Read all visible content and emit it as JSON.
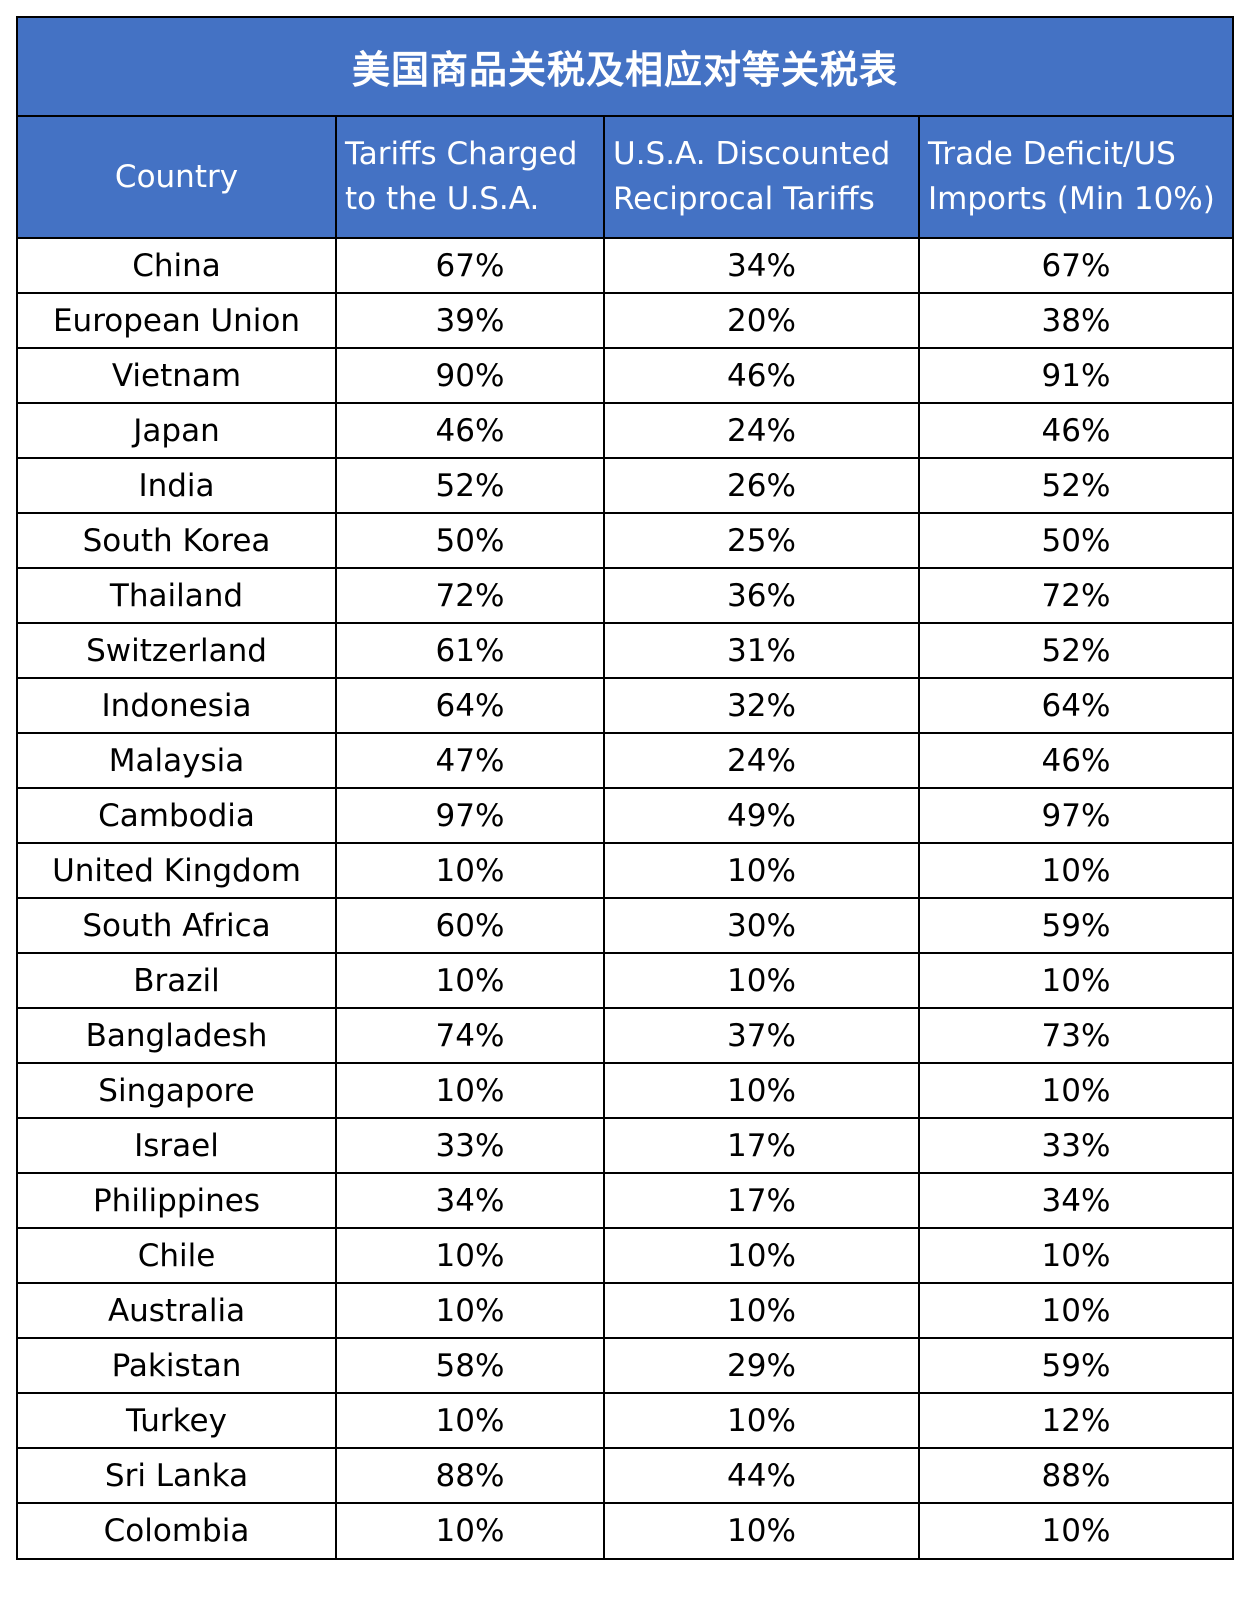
{
  "title": "美国商品关税及相应对等关税表",
  "headers": {
    "country": "Country",
    "charged": "Tariffs Charged to the U.S.A.",
    "discounted": "U.S.A. Discounted Reciprocal Tariffs",
    "deficit": "Trade Deficit/US Imports (Min 10%)"
  },
  "colors": {
    "header_bg": "#4472c4",
    "header_text": "#ffffff",
    "border": "#000000"
  },
  "rows": [
    {
      "country": "China",
      "charged": "67%",
      "discounted": "34%",
      "deficit": "67%"
    },
    {
      "country": "European Union",
      "charged": "39%",
      "discounted": "20%",
      "deficit": "38%"
    },
    {
      "country": "Vietnam",
      "charged": "90%",
      "discounted": "46%",
      "deficit": "91%"
    },
    {
      "country": "Japan",
      "charged": "46%",
      "discounted": "24%",
      "deficit": "46%"
    },
    {
      "country": "India",
      "charged": "52%",
      "discounted": "26%",
      "deficit": "52%"
    },
    {
      "country": "South Korea",
      "charged": "50%",
      "discounted": "25%",
      "deficit": "50%"
    },
    {
      "country": "Thailand",
      "charged": "72%",
      "discounted": "36%",
      "deficit": "72%"
    },
    {
      "country": "Switzerland",
      "charged": "61%",
      "discounted": "31%",
      "deficit": "52%"
    },
    {
      "country": "Indonesia",
      "charged": "64%",
      "discounted": "32%",
      "deficit": "64%"
    },
    {
      "country": "Malaysia",
      "charged": "47%",
      "discounted": "24%",
      "deficit": "46%"
    },
    {
      "country": "Cambodia",
      "charged": "97%",
      "discounted": "49%",
      "deficit": "97%"
    },
    {
      "country": "United Kingdom",
      "charged": "10%",
      "discounted": "10%",
      "deficit": "10%"
    },
    {
      "country": "South Africa",
      "charged": "60%",
      "discounted": "30%",
      "deficit": "59%"
    },
    {
      "country": "Brazil",
      "charged": "10%",
      "discounted": "10%",
      "deficit": "10%"
    },
    {
      "country": "Bangladesh",
      "charged": "74%",
      "discounted": "37%",
      "deficit": "73%"
    },
    {
      "country": "Singapore",
      "charged": "10%",
      "discounted": "10%",
      "deficit": "10%"
    },
    {
      "country": "Israel",
      "charged": "33%",
      "discounted": "17%",
      "deficit": "33%"
    },
    {
      "country": "Philippines",
      "charged": "34%",
      "discounted": "17%",
      "deficit": "34%"
    },
    {
      "country": "Chile",
      "charged": "10%",
      "discounted": "10%",
      "deficit": "10%"
    },
    {
      "country": "Australia",
      "charged": "10%",
      "discounted": "10%",
      "deficit": "10%"
    },
    {
      "country": "Pakistan",
      "charged": "58%",
      "discounted": "29%",
      "deficit": "59%"
    },
    {
      "country": "Turkey",
      "charged": "10%",
      "discounted": "10%",
      "deficit": "12%"
    },
    {
      "country": "Sri Lanka",
      "charged": "88%",
      "discounted": "44%",
      "deficit": "88%"
    },
    {
      "country": "Colombia",
      "charged": "10%",
      "discounted": "10%",
      "deficit": "10%"
    }
  ]
}
